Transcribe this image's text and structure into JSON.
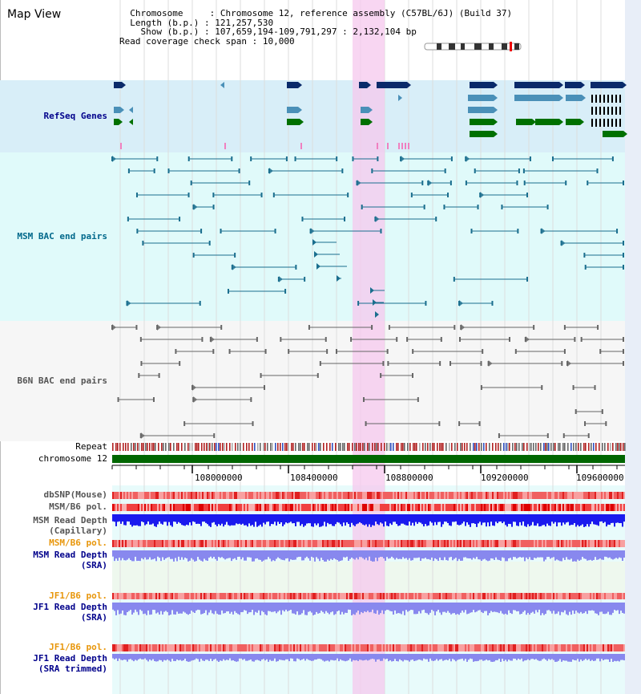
{
  "page": {
    "title": "Map View"
  },
  "info": {
    "chromosome_label": "Chromosome",
    "chromosome_value": "Chromosome 12, reference assembly (C57BL/6J) (Build 37)",
    "length_label": "Length (b.p.)",
    "length_value": "121,257,530",
    "show_label": "Show (b.p.)",
    "show_value": "107,659,194-109,791,297 : 2,132,104 bp",
    "coverage_label": "Read coverage check span",
    "coverage_value": "10,000"
  },
  "tracks": {
    "refseq": "RefSeq Genes",
    "msm_bac": "MSM BAC end pairs",
    "b6n_bac": "B6N BAC end pairs",
    "repeat": "Repeat",
    "chromosome": "chromosome 12",
    "dbsnp": "dbSNP(Mouse)",
    "msm_b6_pol_1": "MSM/B6 pol.",
    "msm_read_depth_cap_1": "MSM Read Depth",
    "msm_read_depth_cap_2": "(Capillary)",
    "msm_b6_pol_2": "MSM/B6 pol.",
    "msm_read_depth_sra_1": "MSM Read Depth",
    "msm_read_depth_sra_2": "(SRA)",
    "jf1_b6_pol_1": "JF1/B6 pol.",
    "jf1_read_depth_sra_1": "JF1 Read Depth",
    "jf1_read_depth_sra_2": "(SRA)",
    "jf1_b6_pol_2": "JF1/B6 pol.",
    "jf1_read_depth_trim_1": "JF1 Read Depth",
    "jf1_read_depth_trim_2": "(SRA trimmed)"
  },
  "axis": {
    "ticks": [
      "108000000",
      "108400000",
      "108800000",
      "109200000",
      "109600000"
    ]
  },
  "colors": {
    "refseq_bg": "#d8eef8",
    "msm_bg": "#e0fafa",
    "b6n_bg": "#f6f6f6",
    "highlight": "#f5c8ee",
    "gene_dark": "#0a2a6a",
    "gene_mid": "#4a90b8",
    "gene_green": "#007000",
    "msm_line": "#1a6e8e",
    "b6n_line": "#666666",
    "chromosome_bar": "#006600",
    "snp_red": "#f07070",
    "depth_blue": "#1a1aee",
    "depth_light_blue": "#8888ee",
    "label_blue": "#00008b",
    "label_teal": "#00688b",
    "label_orange": "#e8960a",
    "label_gray": "#555555"
  }
}
